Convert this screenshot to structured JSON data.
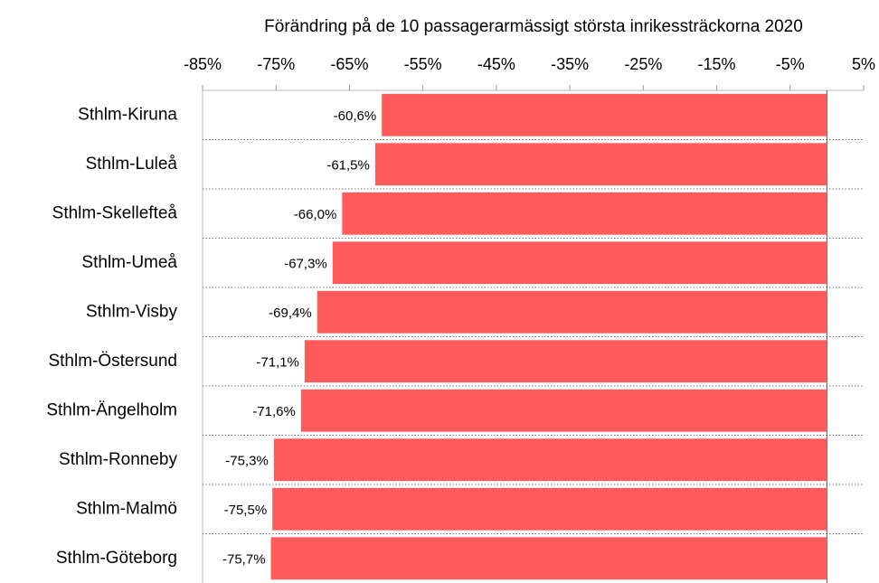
{
  "chart_data": {
    "type": "hbar",
    "title": "Förändring på de 10 passagerarmässigt största inrikessträckorna 2020",
    "categories": [
      "Sthlm-Kiruna",
      "Sthlm-Luleå",
      "Sthlm-Skellefteå",
      "Sthlm-Umeå",
      "Sthlm-Visby",
      "Sthlm-Östersund",
      "Sthlm-Ängelholm",
      "Sthlm-Ronneby",
      "Sthlm-Malmö",
      "Sthlm-Göteborg"
    ],
    "values": [
      -60.6,
      -61.5,
      -66.0,
      -67.3,
      -69.4,
      -71.1,
      -71.6,
      -75.3,
      -75.5,
      -75.7
    ],
    "value_labels": [
      "-60,6%",
      "-61,5%",
      "-66,0%",
      "-67,3%",
      "-69,4%",
      "-71,1%",
      "-71,6%",
      "-75,3%",
      "-75,5%",
      "-75,7%"
    ],
    "color": "#ff5b5b",
    "xlim": [
      -85,
      5
    ],
    "xticks": [
      {
        "value": -85,
        "label": "-85%"
      },
      {
        "value": -75,
        "label": "-75%"
      },
      {
        "value": -65,
        "label": "-65%"
      },
      {
        "value": -55,
        "label": "-55%"
      },
      {
        "value": -45,
        "label": "-45%"
      },
      {
        "value": -35,
        "label": "-35%"
      },
      {
        "value": -25,
        "label": "-25%"
      },
      {
        "value": -15,
        "label": "-15%"
      },
      {
        "value": -5,
        "label": "-5%"
      },
      {
        "value": 5,
        "label": "5%"
      }
    ]
  }
}
